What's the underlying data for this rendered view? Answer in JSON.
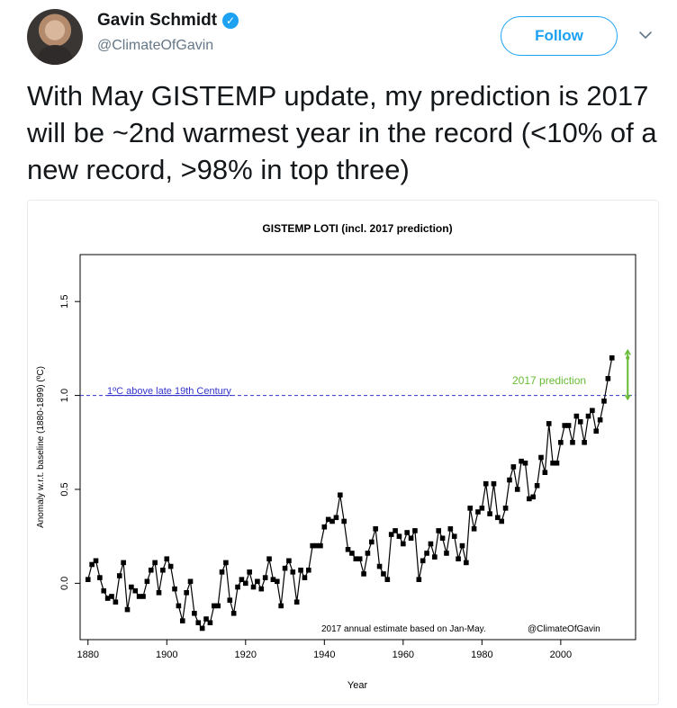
{
  "author": {
    "name": "Gavin Schmidt",
    "handle": "@ClimateOfGavin",
    "verified_icon": "verified-badge-icon",
    "avatar": "profile-photo"
  },
  "follow_label": "Follow",
  "menu_icon": "chevron-down-icon",
  "tweet_text": "With May GISTEMP update, my prediction is 2017 will be ~2nd warmest year in the record (<10% of a new record, >98% in top three)",
  "colors": {
    "accent": "#1da1f2",
    "reference_line": "#3333cc",
    "prediction": "#66bb33",
    "series": "#000000"
  },
  "chart_data": {
    "type": "line",
    "title": "GISTEMP LOTI (incl. 2017 prediction)",
    "xlabel": "Year",
    "ylabel": "Anomaly w.r.t. baseline (1880-1899) (ºC)",
    "xlim": [
      1878,
      2019
    ],
    "ylim": [
      -0.3,
      1.75
    ],
    "xticks": [
      1880,
      1900,
      1920,
      1940,
      1960,
      1980,
      2000
    ],
    "yticks": [
      0.0,
      0.5,
      1.0,
      1.5
    ],
    "ytick_labels": [
      "0.0",
      "0.5",
      "1.0",
      "1.5"
    ],
    "grid": false,
    "reference_line": {
      "y": 1.0,
      "label": "1ºC above late 19th Century",
      "style": "dashed"
    },
    "prediction": {
      "x": 2017,
      "value": 1.2,
      "low": 0.98,
      "high": 1.24,
      "label": "2017 prediction"
    },
    "annotation": "2017 annual estimate based on Jan-May.",
    "credit": "@ClimateOfGavin",
    "series": [
      {
        "x_start": 1880,
        "values": [
          0.02,
          0.1,
          0.12,
          0.03,
          -0.04,
          -0.08,
          -0.07,
          -0.1,
          0.04,
          0.11,
          -0.14,
          -0.02,
          -0.04,
          -0.07,
          -0.07,
          0.01,
          0.07,
          0.11,
          -0.05,
          0.07,
          0.13,
          0.09,
          -0.03,
          -0.12,
          -0.2,
          -0.05,
          0.01,
          -0.16,
          -0.21,
          -0.24,
          -0.19,
          -0.21,
          -0.12,
          -0.12,
          0.06,
          0.11,
          -0.09,
          -0.16,
          -0.02,
          0.02,
          0.0,
          0.06,
          -0.02,
          0.01,
          -0.03,
          0.03,
          0.13,
          0.02,
          0.01,
          -0.12,
          0.08,
          0.12,
          0.06,
          -0.1,
          0.07,
          0.03,
          0.07,
          0.2,
          0.2,
          0.2,
          0.3,
          0.34,
          0.33,
          0.35,
          0.47,
          0.33,
          0.18,
          0.16,
          0.13,
          0.13,
          0.05,
          0.16,
          0.22,
          0.29,
          0.09,
          0.05,
          0.02,
          0.26,
          0.28,
          0.25,
          0.21,
          0.27,
          0.24,
          0.28,
          0.02,
          0.12,
          0.16,
          0.21,
          0.14,
          0.28,
          0.24,
          0.16,
          0.29,
          0.25,
          0.13,
          0.2,
          0.11,
          0.4,
          0.29,
          0.38,
          0.4,
          0.53,
          0.37,
          0.53,
          0.35,
          0.33,
          0.4,
          0.55,
          0.62,
          0.5,
          0.65,
          0.64,
          0.45,
          0.46,
          0.52,
          0.67,
          0.59,
          0.85,
          0.64,
          0.64,
          0.75,
          0.84,
          0.84,
          0.75,
          0.89,
          0.86,
          0.75,
          0.89,
          0.92,
          0.81,
          0.87,
          0.97,
          1.09,
          1.2
        ]
      }
    ]
  }
}
